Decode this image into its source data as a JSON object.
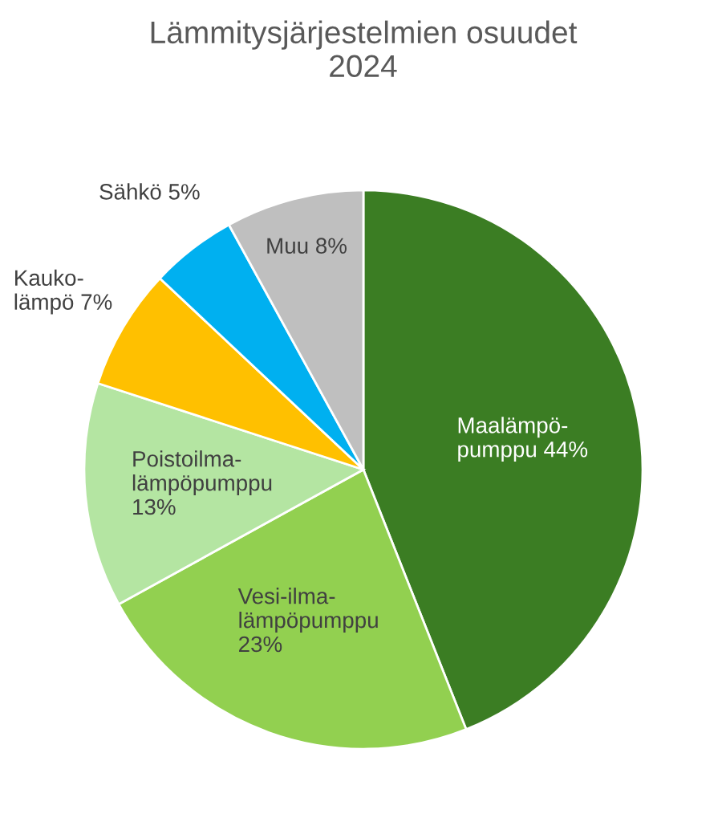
{
  "chart_data": {
    "type": "pie",
    "title": "Lämmitysjärjestelmien osuudet\n2024",
    "categories": [
      "Maalämpö-\npumppu ",
      "Vesi-ilma-\nlämpöpumppu\n",
      "Poistoilma-\nlämpöpumppu\n",
      "Kauko-\nlämpö ",
      "Sähkö ",
      "Muu "
    ],
    "values": [
      44,
      23,
      13,
      7,
      5,
      8
    ],
    "value_labels": [
      "44%",
      "23%",
      "13%",
      "7%",
      "5%",
      "8%"
    ],
    "colors": [
      "#3b7d23",
      "#92d050",
      "#b4e5a2",
      "#ffc000",
      "#00b0f0",
      "#bfbfbf"
    ],
    "legend": false
  }
}
